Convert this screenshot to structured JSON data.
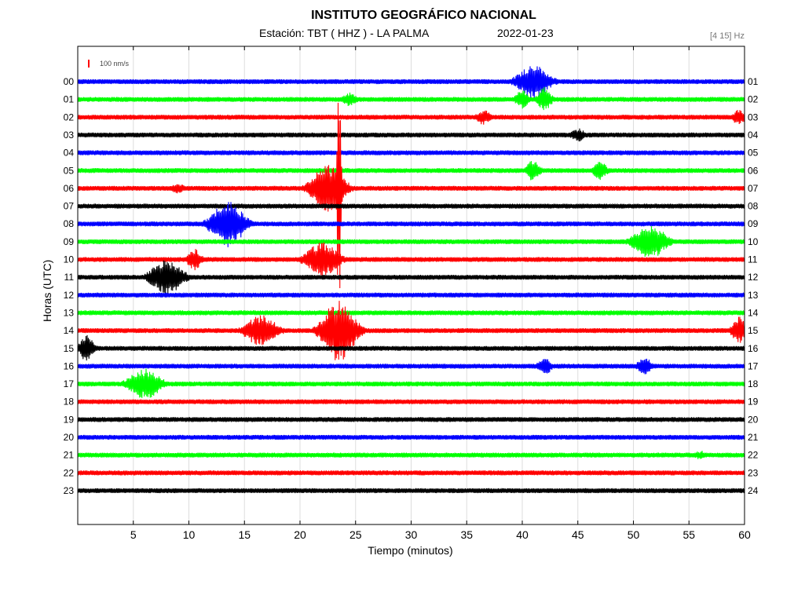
{
  "header": {
    "title": "INSTITUTO GEOGRÁFICO NACIONAL",
    "station": "Estación:  TBT ( HHZ ) - LA PALMA",
    "date": "2022-01-23",
    "band": "[4 15] Hz"
  },
  "chart_data": {
    "type": "line",
    "title": "INSTITUTO GEOGRÁFICO NACIONAL",
    "xlabel": "Tiempo (minutos)",
    "ylabel": "Horas (UTC)",
    "xlim": [
      0,
      60
    ],
    "x_ticks": [
      5,
      10,
      15,
      20,
      25,
      30,
      35,
      40,
      45,
      50,
      55,
      60
    ],
    "grid": true,
    "scale_label": "100 nm/s",
    "left_hours": [
      "00",
      "01",
      "02",
      "03",
      "04",
      "05",
      "06",
      "07",
      "08",
      "09",
      "10",
      "11",
      "12",
      "13",
      "14",
      "15",
      "16",
      "17",
      "18",
      "19",
      "20",
      "21",
      "22",
      "23"
    ],
    "right_hours": [
      "01",
      "02",
      "03",
      "04",
      "05",
      "06",
      "07",
      "08",
      "09",
      "10",
      "11",
      "12",
      "13",
      "14",
      "15",
      "16",
      "17",
      "18",
      "19",
      "20",
      "21",
      "22",
      "23",
      "24"
    ],
    "trace_colors": [
      "#0000ff",
      "#00ff00",
      "#ff0000",
      "#000000"
    ],
    "events": [
      {
        "hour": "00",
        "minute": 41.0,
        "amplitude": 22
      },
      {
        "hour": "01",
        "minute": 40.0,
        "amplitude": 12
      },
      {
        "hour": "01",
        "minute": 42.0,
        "amplitude": 16
      },
      {
        "hour": "01",
        "minute": 24.5,
        "amplitude": 9
      },
      {
        "hour": "02",
        "minute": 36.5,
        "amplitude": 10
      },
      {
        "hour": "02",
        "minute": 59.5,
        "amplitude": 10
      },
      {
        "hour": "03",
        "minute": 45.0,
        "amplitude": 9
      },
      {
        "hour": "05",
        "minute": 41.0,
        "amplitude": 14
      },
      {
        "hour": "05",
        "minute": 47.0,
        "amplitude": 12
      },
      {
        "hour": "06",
        "minute": 9.0,
        "amplitude": 7
      },
      {
        "hour": "06",
        "minute": 22.5,
        "amplitude": 30
      },
      {
        "hour": "06",
        "minute": 23.5,
        "amplitude": 170
      },
      {
        "hour": "08",
        "minute": 13.5,
        "amplitude": 30
      },
      {
        "hour": "09",
        "minute": 51.5,
        "amplitude": 22
      },
      {
        "hour": "10",
        "minute": 10.5,
        "amplitude": 14
      },
      {
        "hour": "10",
        "minute": 22.0,
        "amplitude": 22
      },
      {
        "hour": "11",
        "minute": 8.0,
        "amplitude": 22
      },
      {
        "hour": "14",
        "minute": 16.5,
        "amplitude": 20
      },
      {
        "hour": "14",
        "minute": 59.5,
        "amplitude": 18
      },
      {
        "hour": "14",
        "minute": 23.5,
        "amplitude": 40
      },
      {
        "hour": "15",
        "minute": 0.8,
        "amplitude": 18
      },
      {
        "hour": "16",
        "minute": 42.0,
        "amplitude": 12
      },
      {
        "hour": "16",
        "minute": 51.0,
        "amplitude": 12
      },
      {
        "hour": "17",
        "minute": 6.0,
        "amplitude": 20
      },
      {
        "hour": "21",
        "minute": 56.0,
        "amplitude": 6
      }
    ]
  }
}
